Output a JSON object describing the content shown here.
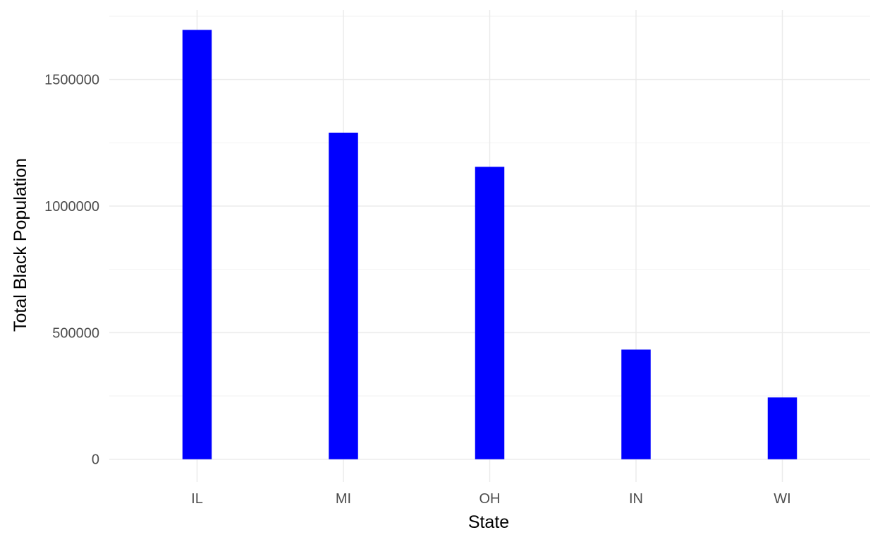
{
  "chart_data": {
    "type": "bar",
    "title": "",
    "xlabel": "State",
    "ylabel": "Total Black Population",
    "categories": [
      "IL",
      "MI",
      "OH",
      "IN",
      "WI"
    ],
    "values": [
      1696000,
      1290000,
      1155000,
      433000,
      244000
    ],
    "ylim": [
      -90000,
      1775000
    ],
    "yticks": [
      0,
      500000,
      1000000,
      1500000
    ],
    "ytick_labels": [
      "0",
      "500000",
      "1000000",
      "1500000"
    ],
    "grid": true,
    "legend": "none",
    "bar_color": "#0000ff"
  }
}
